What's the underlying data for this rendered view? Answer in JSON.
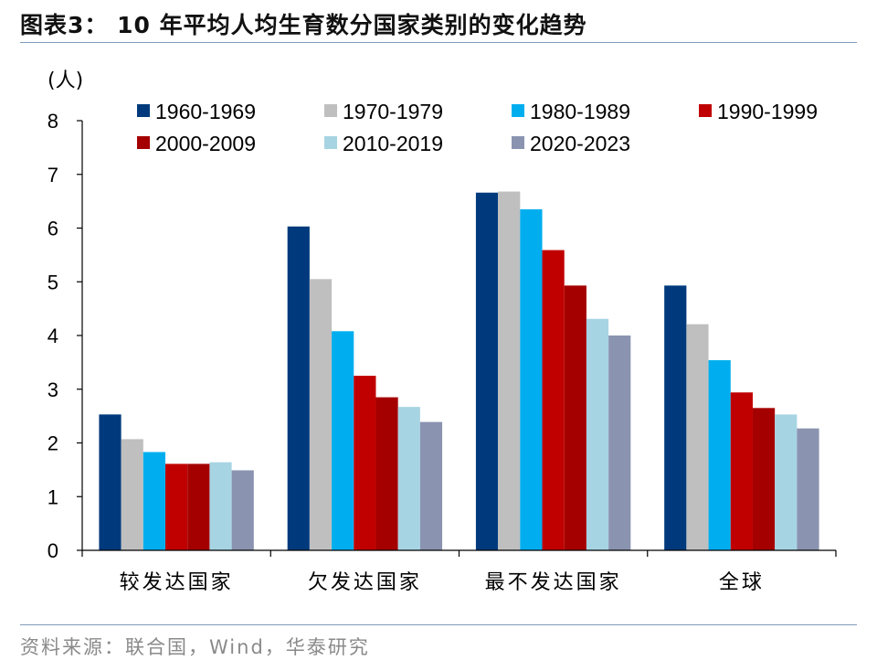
{
  "header": {
    "title": "图表3：  10 年平均人均生育数分国家类别的变化趋势"
  },
  "source": "资料来源：联合国，Wind，华泰研究",
  "chart_data": {
    "type": "bar",
    "title": "",
    "ylabel": "(人)",
    "xlabel": "",
    "ylim": [
      0,
      8
    ],
    "yticks": [
      0,
      1,
      2,
      3,
      4,
      5,
      6,
      7,
      8
    ],
    "grid": false,
    "legend_position": "top",
    "categories": [
      "较发达国家",
      "欠发达国家",
      "最不发达国家",
      "全球"
    ],
    "series": [
      {
        "name": "1960-1969",
        "color": "#003a7d",
        "values": [
          2.53,
          6.03,
          6.66,
          4.93
        ]
      },
      {
        "name": "1970-1979",
        "color": "#bfbfbf",
        "values": [
          2.07,
          5.05,
          6.68,
          4.21
        ]
      },
      {
        "name": "1980-1989",
        "color": "#00aeef",
        "values": [
          1.83,
          4.08,
          6.35,
          3.54
        ]
      },
      {
        "name": "1990-1999",
        "color": "#c00000",
        "values": [
          1.61,
          3.25,
          5.59,
          2.94
        ]
      },
      {
        "name": "2000-2009",
        "color": "#a50000",
        "values": [
          1.61,
          2.85,
          4.93,
          2.65
        ]
      },
      {
        "name": "2010-2019",
        "color": "#a7d4e3",
        "values": [
          1.64,
          2.67,
          4.31,
          2.53
        ]
      },
      {
        "name": "2020-2023",
        "color": "#8a94b1",
        "values": [
          1.49,
          2.39,
          4.0,
          2.27
        ]
      }
    ]
  }
}
